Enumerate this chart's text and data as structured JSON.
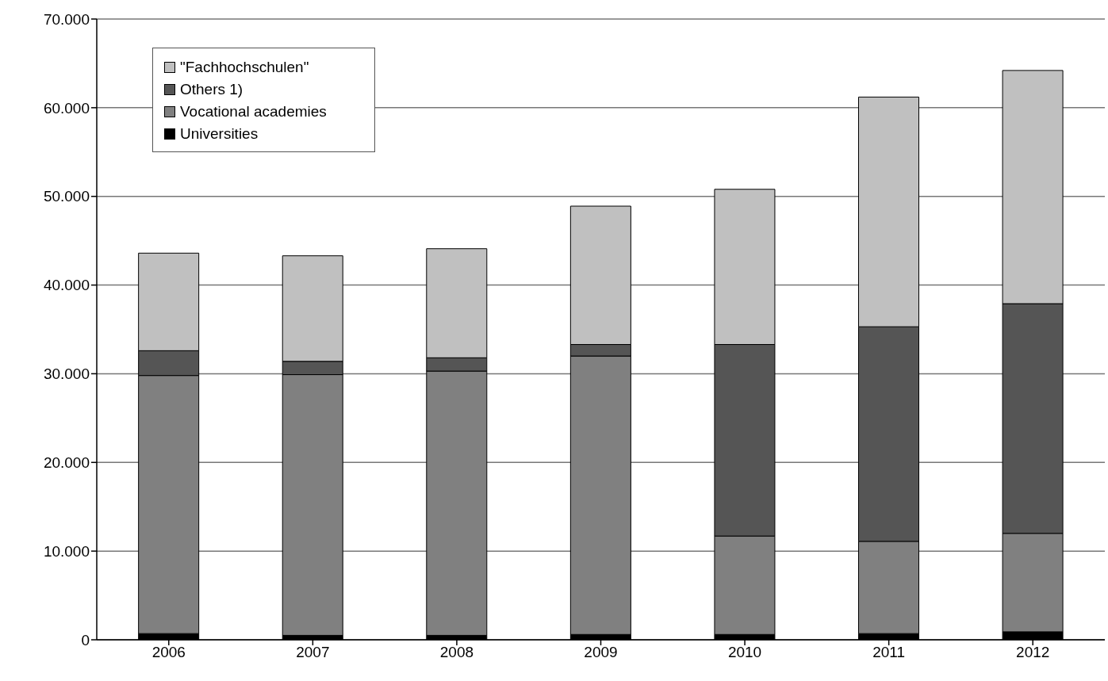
{
  "chart_data": {
    "type": "bar",
    "stacked": true,
    "categories": [
      "2006",
      "2007",
      "2008",
      "2009",
      "2010",
      "2011",
      "2012"
    ],
    "series": [
      {
        "name": "Universities",
        "color": "#000000",
        "values": [
          700,
          500,
          500,
          600,
          600,
          700,
          900
        ]
      },
      {
        "name": "Vocational academies",
        "color": "#808080",
        "values": [
          29100,
          29400,
          29800,
          31400,
          11100,
          10400,
          11100
        ]
      },
      {
        "name": "Others 1)",
        "color": "#555555",
        "values": [
          2800,
          1500,
          1500,
          1300,
          21600,
          24200,
          25900
        ]
      },
      {
        "name": "\"Fachhochschulen\"",
        "color": "#c0c0c0",
        "values": [
          11000,
          11900,
          12300,
          15600,
          17500,
          25900,
          26300
        ]
      }
    ],
    "ylim": [
      0,
      70000
    ],
    "yticks": [
      {
        "value": 0,
        "label": "0"
      },
      {
        "value": 10000,
        "label": "10.000"
      },
      {
        "value": 20000,
        "label": "20.000"
      },
      {
        "value": 30000,
        "label": "30.000"
      },
      {
        "value": 40000,
        "label": "40.000"
      },
      {
        "value": 50000,
        "label": "50.000"
      },
      {
        "value": 60000,
        "label": "60.000"
      },
      {
        "value": 70000,
        "label": "70.000"
      }
    ],
    "grid": "y",
    "legend": "top left"
  }
}
